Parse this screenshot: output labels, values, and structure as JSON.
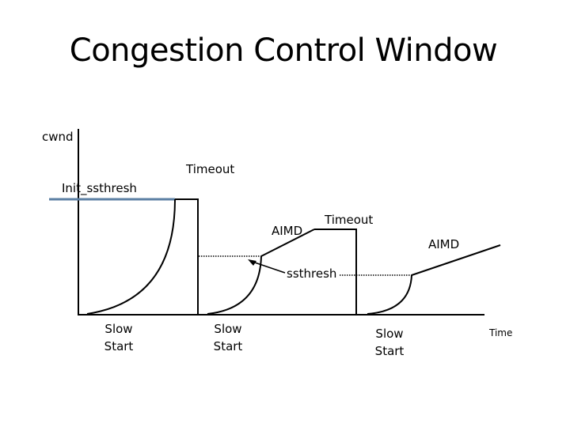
{
  "title": "Congestion Control Window",
  "colors": {
    "line": "#000000",
    "initial_threshold": "#5b7fa3"
  },
  "labels": {
    "y_axis": "cwnd",
    "x_axis": "Time",
    "init_ssthresh": "Init_ssthresh",
    "ssthresh": "ssthresh",
    "timeout_1": "Timeout",
    "timeout_2": "Timeout",
    "aimd_1": "AIMD",
    "aimd_2": "AIMD",
    "slow_start_1": [
      "Slow",
      "Start"
    ],
    "slow_start_2": [
      "Slow",
      "Start"
    ],
    "slow_start_3": [
      "Slow",
      "Start"
    ]
  }
}
